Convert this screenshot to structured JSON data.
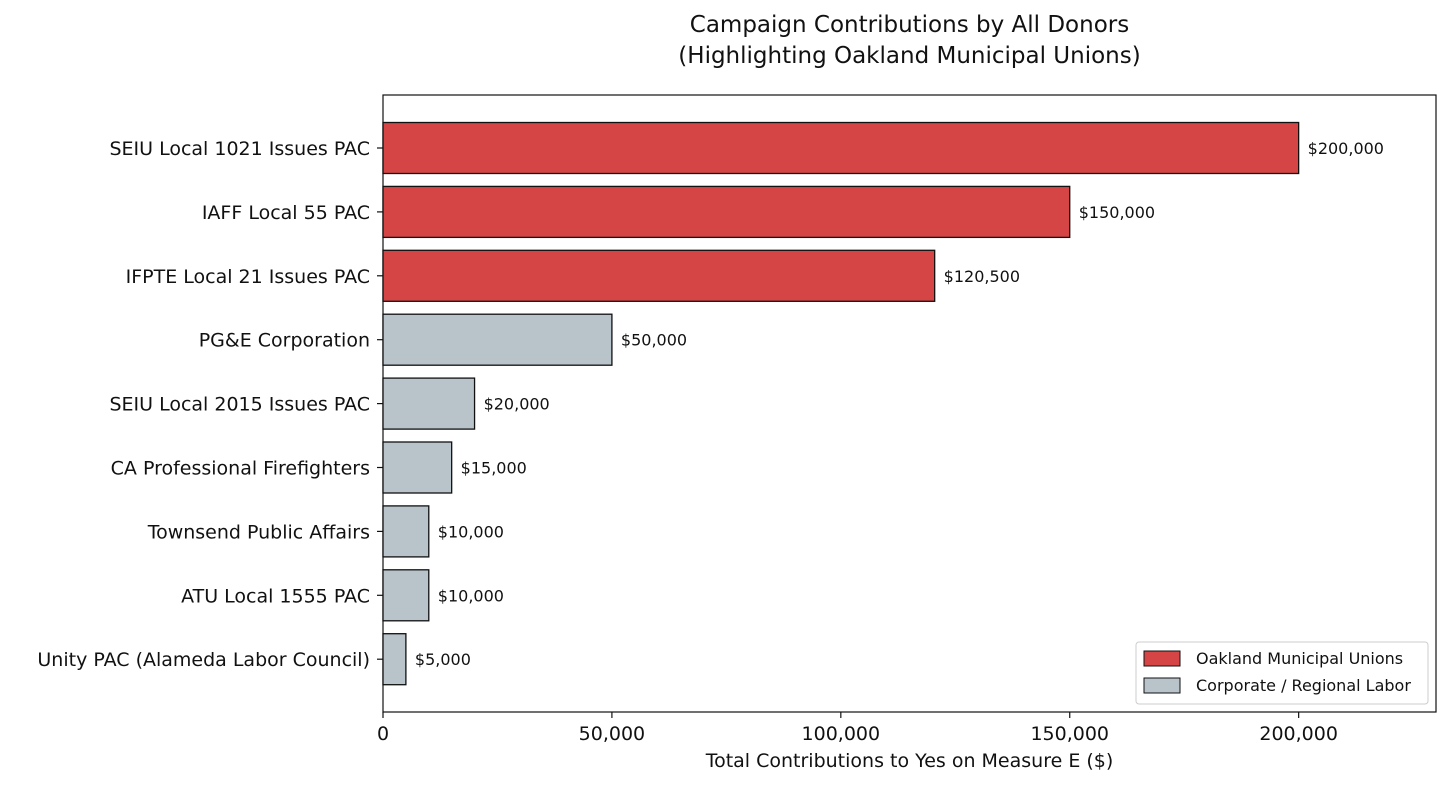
{
  "chart_data": {
    "type": "bar",
    "orientation": "horizontal",
    "title": "Campaign Contributions by All Donors",
    "subtitle": "(Highlighting Oakland Municipal Unions)",
    "xlabel": "Total Contributions to Yes on Measure E ($)",
    "ylabel": "",
    "xlim": [
      0,
      230000
    ],
    "xticks": [
      0,
      50000,
      100000,
      150000,
      200000
    ],
    "xtick_labels": [
      "0",
      "50,000",
      "100,000",
      "150,000",
      "200,000"
    ],
    "grid": false,
    "legend_position": "bottom-right",
    "categories": [
      "SEIU Local 1021 Issues PAC",
      "IAFF Local 55 PAC",
      "IFPTE Local 21 Issues PAC",
      "PG&E Corporation",
      "SEIU Local 2015 Issues PAC",
      "CA Professional Firefighters",
      "Townsend Public Affairs",
      "ATU Local 1555 PAC",
      "Unity PAC (Alameda Labor Council)"
    ],
    "values": [
      200000,
      150000,
      120500,
      50000,
      20000,
      15000,
      10000,
      10000,
      5000
    ],
    "value_labels": [
      "$200,000",
      "$150,000",
      "$120,500",
      "$50,000",
      "$20,000",
      "$15,000",
      "$10,000",
      "$10,000",
      "$5,000"
    ],
    "groups": [
      "Oakland Municipal Unions",
      "Oakland Municipal Unions",
      "Oakland Municipal Unions",
      "Corporate / Regional Labor",
      "Corporate / Regional Labor",
      "Corporate / Regional Labor",
      "Corporate / Regional Labor",
      "Corporate / Regional Labor",
      "Corporate / Regional Labor"
    ],
    "legend": [
      {
        "name": "Oakland Municipal Unions",
        "color": "#d64545"
      },
      {
        "name": "Corporate / Regional Labor",
        "color": "#b8c4c9"
      }
    ]
  }
}
